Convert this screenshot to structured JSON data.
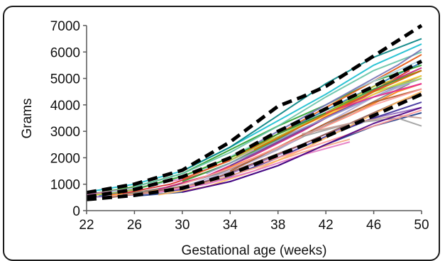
{
  "chart_data": {
    "type": "line",
    "title": "",
    "xlabel": "Gestational age (weeks)",
    "ylabel": "Grams",
    "xlim": [
      22,
      50
    ],
    "ylim": [
      0,
      7000
    ],
    "x_ticks": [
      "22",
      "26",
      "30",
      "34",
      "38",
      "42",
      "46",
      "50"
    ],
    "y_ticks": [
      "0",
      "1000",
      "2000",
      "3000",
      "4000",
      "5000",
      "6000",
      "7000"
    ],
    "grid": false,
    "legend": "none",
    "reference_curves": [
      {
        "style": "dashed",
        "color": "#000000",
        "x": [
          22,
          26,
          30,
          34,
          38,
          40,
          42,
          46,
          50
        ],
        "y": [
          680,
          1000,
          1530,
          2600,
          3950,
          4300,
          4700,
          5850,
          7000
        ]
      },
      {
        "style": "dashed",
        "color": "#000000",
        "x": [
          22,
          26,
          30,
          34,
          38,
          42,
          46,
          50
        ],
        "y": [
          520,
          800,
          1280,
          2000,
          3000,
          3850,
          4700,
          5650
        ]
      },
      {
        "style": "dashed",
        "color": "#000000",
        "x": [
          22,
          26,
          30,
          34,
          38,
          42,
          46,
          50
        ],
        "y": [
          420,
          580,
          850,
          1380,
          2100,
          2800,
          3600,
          4400
        ]
      }
    ],
    "series": [
      {
        "color": "#1f77b4",
        "x": [
          23,
          26,
          30,
          34,
          38,
          42,
          46,
          50
        ],
        "y": [
          550,
          800,
          1300,
          2000,
          2900,
          3800,
          4700,
          5600
        ]
      },
      {
        "color": "#ff7f0e",
        "x": [
          24,
          28,
          32,
          36,
          40,
          44,
          48,
          50
        ],
        "y": [
          600,
          800,
          1300,
          2000,
          2800,
          3600,
          4500,
          4800
        ]
      },
      {
        "color": "#2ca02c",
        "x": [
          22,
          26,
          30,
          34,
          38,
          42,
          46,
          50
        ],
        "y": [
          600,
          900,
          1400,
          2300,
          3200,
          4000,
          4900,
          5500
        ]
      },
      {
        "color": "#d62728",
        "x": [
          25,
          29,
          33,
          37,
          41,
          45,
          49
        ],
        "y": [
          650,
          1000,
          1600,
          2400,
          3300,
          4300,
          5300
        ]
      },
      {
        "color": "#9467bd",
        "x": [
          22,
          26,
          30,
          34,
          38,
          42,
          46,
          50
        ],
        "y": [
          500,
          600,
          850,
          1400,
          2100,
          2900,
          3500,
          3900
        ]
      },
      {
        "color": "#8c564b",
        "x": [
          24,
          28,
          32,
          36,
          40,
          44,
          48,
          50
        ],
        "y": [
          500,
          750,
          1100,
          1800,
          2500,
          3300,
          4100,
          4400
        ]
      },
      {
        "color": "#e377c2",
        "x": [
          22,
          26,
          30,
          34,
          38,
          42,
          46,
          50
        ],
        "y": [
          600,
          850,
          1200,
          1900,
          2700,
          3500,
          4300,
          4800
        ]
      },
      {
        "color": "#7f7f7f",
        "x": [
          25,
          29,
          33,
          37,
          41,
          45,
          49
        ],
        "y": [
          600,
          900,
          1400,
          2100,
          3000,
          3900,
          4800
        ]
      },
      {
        "color": "#bcbd22",
        "x": [
          22,
          26,
          30,
          34,
          38,
          42,
          46,
          50
        ],
        "y": [
          550,
          800,
          1300,
          2000,
          2800,
          3700,
          4700,
          5300
        ]
      },
      {
        "color": "#17becf",
        "x": [
          22,
          26,
          30,
          34,
          38,
          42,
          46,
          50
        ],
        "y": [
          700,
          1000,
          1500,
          2400,
          3400,
          4400,
          5500,
          6300
        ]
      },
      {
        "color": "#1f3c88",
        "x": [
          26,
          30,
          34,
          38,
          42,
          46,
          50
        ],
        "y": [
          550,
          700,
          1100,
          1700,
          2500,
          3200,
          3700
        ]
      },
      {
        "color": "#3b2c99",
        "x": [
          26,
          30,
          34,
          38,
          42,
          46,
          50
        ],
        "y": [
          600,
          800,
          1300,
          2000,
          2800,
          3500,
          4100
        ]
      },
      {
        "color": "#f4a582",
        "x": [
          24,
          28,
          32,
          36,
          40,
          44
        ],
        "y": [
          550,
          700,
          1050,
          1600,
          2200,
          2700
        ]
      },
      {
        "color": "#fdb863",
        "x": [
          28,
          32,
          36,
          40,
          44,
          48,
          50
        ],
        "y": [
          600,
          900,
          1500,
          2300,
          3200,
          4100,
          4500
        ]
      },
      {
        "color": "#b2abd2",
        "x": [
          30,
          34,
          38,
          42,
          46,
          50
        ],
        "y": [
          900,
          1500,
          2300,
          3300,
          4300,
          5000
        ]
      },
      {
        "color": "#66c2a5",
        "x": [
          26,
          30,
          34,
          38,
          42,
          46,
          50
        ],
        "y": [
          900,
          1400,
          2200,
          3200,
          4300,
          5300,
          6000
        ]
      },
      {
        "color": "#e6550d",
        "x": [
          30,
          34,
          38,
          42,
          46,
          50
        ],
        "y": [
          1200,
          1900,
          2900,
          3900,
          4900,
          5900
        ]
      },
      {
        "color": "#c51b7d",
        "x": [
          28,
          32,
          36,
          40,
          44,
          48,
          50
        ],
        "y": [
          800,
          1300,
          2100,
          3000,
          4000,
          5000,
          5400
        ]
      },
      {
        "color": "#a6cee3",
        "x": [
          24,
          28,
          32,
          36,
          40,
          44,
          48,
          50
        ],
        "y": [
          700,
          1000,
          1600,
          2500,
          3500,
          4500,
          5300,
          5700
        ]
      },
      {
        "color": "#6a3d9a",
        "x": [
          34,
          38,
          42,
          46,
          50
        ],
        "y": [
          1700,
          2600,
          3500,
          4400,
          5100
        ]
      },
      {
        "color": "#b15928",
        "x": [
          34,
          38,
          42,
          46,
          50
        ],
        "y": [
          1500,
          2400,
          3300,
          4100,
          4600
        ]
      },
      {
        "color": "#33a02c",
        "x": [
          30,
          34,
          38,
          42,
          46,
          50
        ],
        "y": [
          1100,
          1800,
          2700,
          3700,
          4600,
          5300
        ]
      },
      {
        "color": "#fb9a99",
        "x": [
          30,
          34,
          38,
          42,
          46,
          50
        ],
        "y": [
          1000,
          1600,
          2400,
          3200,
          4000,
          4600
        ]
      },
      {
        "color": "#ffd92f",
        "x": [
          36,
          40,
          44,
          48,
          50
        ],
        "y": [
          2300,
          3200,
          4000,
          4800,
          5100
        ]
      },
      {
        "color": "#8da0cb",
        "x": [
          32,
          36,
          40,
          44,
          48,
          50
        ],
        "y": [
          1400,
          2200,
          3100,
          3900,
          4700,
          5000
        ]
      },
      {
        "color": "#a6d854",
        "x": [
          34,
          38,
          42,
          46,
          50
        ],
        "y": [
          1900,
          2800,
          3700,
          4500,
          5000
        ]
      },
      {
        "color": "#008080",
        "x": [
          30,
          34,
          38,
          42,
          46,
          50
        ],
        "y": [
          1500,
          2400,
          3600,
          4800,
          5800,
          6500
        ]
      },
      {
        "color": "#e7298a",
        "x": [
          38,
          42,
          46,
          50
        ],
        "y": [
          2900,
          3700,
          4300,
          4800
        ]
      },
      {
        "color": "#7570b3",
        "x": [
          36,
          40,
          44,
          48,
          50
        ],
        "y": [
          2500,
          3500,
          4500,
          5500,
          6100
        ]
      },
      {
        "color": "#d95f02",
        "x": [
          36,
          40,
          44,
          48,
          50
        ],
        "y": [
          2300,
          3200,
          4100,
          4900,
          5300
        ]
      },
      {
        "color": "#9e9e9e",
        "x": [
          40,
          44,
          48,
          50
        ],
        "y": [
          2800,
          3300,
          3500,
          3200
        ]
      },
      {
        "color": "#c49c94",
        "x": [
          40,
          44,
          48,
          50
        ],
        "y": [
          2900,
          3300,
          3600,
          3500
        ]
      },
      {
        "color": "#e377c2",
        "x": [
          28,
          32,
          36,
          40,
          44
        ],
        "y": [
          700,
          1000,
          1500,
          2100,
          2600
        ]
      },
      {
        "color": "#ff9896",
        "x": [
          36,
          40,
          44,
          48,
          50
        ],
        "y": [
          1700,
          2300,
          2900,
          3500,
          3800
        ]
      },
      {
        "color": "#2ca02c",
        "x": [
          26,
          30,
          34,
          38,
          42
        ],
        "y": [
          800,
          1300,
          2000,
          2900,
          3700
        ]
      },
      {
        "color": "#4b0082",
        "x": [
          30,
          34,
          38,
          42,
          46,
          50
        ],
        "y": [
          700,
          1100,
          1700,
          2500,
          3300,
          3900
        ]
      }
    ]
  }
}
